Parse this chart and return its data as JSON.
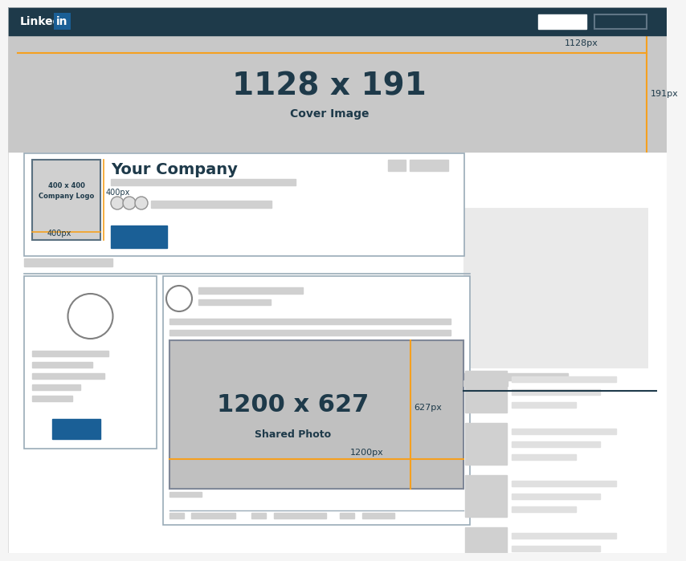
{
  "bg_color": "#f5f5f5",
  "nav_color": "#1e3a4a",
  "cover_bg": "#c8c8c8",
  "cover_text": "1128 x 191",
  "cover_subtext": "Cover Image",
  "cover_width_label": "1128px",
  "cover_height_label": "191px",
  "logo_text_line1": "400 x 400",
  "logo_text_line2": "Company Logo",
  "logo_width_label": "400px",
  "logo_height_label": "400px",
  "company_name": "Your Company",
  "shared_text": "1200 x 627",
  "shared_subtext": "Shared Photo",
  "shared_width_label": "1200px",
  "shared_height_label": "627px",
  "orange": "#f5a020",
  "blue": "#1a5f96",
  "dark": "#1e3a4a",
  "gray_light": "#d0d0d0",
  "gray_lighter": "#e0e0e0",
  "gray_medium": "#c0c0c0",
  "gray_card": "#f0f0f0",
  "border_color": "#9aabb8",
  "line_gray": "#c0c8d0"
}
